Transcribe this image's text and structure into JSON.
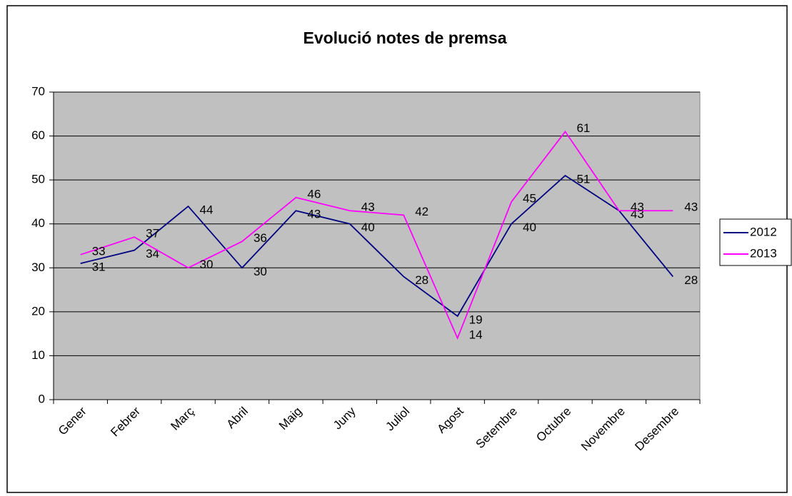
{
  "chart_data": {
    "type": "line",
    "title": "Evolució notes de premsa",
    "categories": [
      "Gener",
      "Febrer",
      "Març",
      "Abril",
      "Maig",
      "Juny",
      "Juliol",
      "Agost",
      "Setembre",
      "Octubre",
      "Novembre",
      "Desembre"
    ],
    "series": [
      {
        "name": "2012",
        "color": "#000080",
        "values": [
          31,
          34,
          44,
          30,
          43,
          40,
          28,
          19,
          40,
          51,
          43,
          28
        ]
      },
      {
        "name": "2013",
        "color": "#ff00ff",
        "values": [
          33,
          37,
          30,
          36,
          46,
          43,
          42,
          14,
          45,
          61,
          43,
          43
        ]
      }
    ],
    "ylim": [
      0,
      70
    ],
    "yticks": [
      0,
      10,
      20,
      30,
      40,
      50,
      60,
      70
    ],
    "grid": true,
    "legend": "right"
  }
}
